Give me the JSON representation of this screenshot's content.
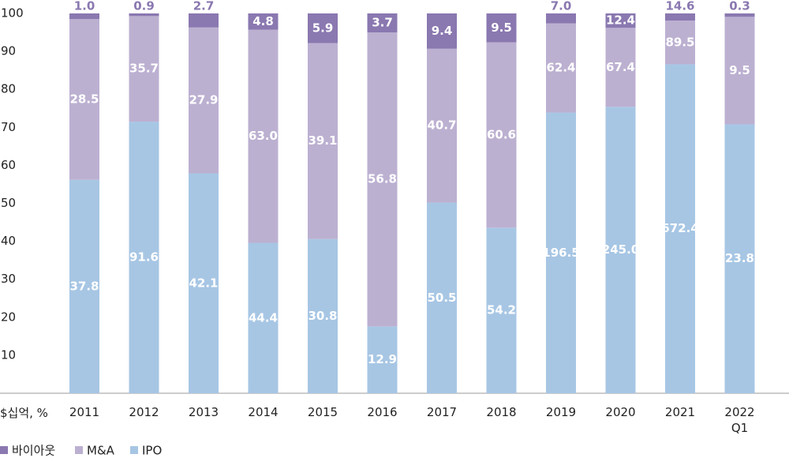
{
  "chart_data": {
    "type": "bar",
    "stacked": true,
    "axis_label": "$십억, %",
    "categories": [
      "2011",
      "2012",
      "2013",
      "2014",
      "2015",
      "2016",
      "2017",
      "2018",
      "2019",
      "2020",
      "2021",
      "2022 Q1"
    ],
    "series": [
      {
        "name": "바이아웃",
        "color": "#8a78b0",
        "values": [
          1.5,
          0.7,
          3.7,
          4.3,
          7.8,
          5.0,
          9.3,
          7.6,
          2.6,
          3.8,
          1.9,
          0.9
        ],
        "amounts": [
          1.0,
          0.9,
          2.7,
          4.8,
          5.9,
          3.7,
          9.4,
          9.5,
          7.0,
          12.4,
          14.6,
          0.3
        ],
        "amount_labels": [
          "1.0",
          "0.9",
          "2.7",
          "4.8",
          "5.9",
          "3.7",
          "9.4",
          "9.5",
          "7.0",
          "12.4",
          "14.6",
          "0.3"
        ]
      },
      {
        "name": "M&A",
        "color": "#bcb0d1",
        "values": [
          42.3,
          27.8,
          38.4,
          56.1,
          51.6,
          77.4,
          40.5,
          48.8,
          23.5,
          20.8,
          11.5,
          28.3
        ],
        "amounts": [
          28.5,
          35.7,
          27.9,
          63.0,
          39.1,
          56.8,
          40.7,
          60.6,
          62.4,
          67.4,
          89.5,
          9.5
        ],
        "amount_labels": [
          "28.5",
          "35.7",
          "27.9",
          "63.0",
          "39.1",
          "56.8",
          "40.7",
          "60.6",
          "62.4",
          "67.4",
          "89.5",
          "9.5"
        ]
      },
      {
        "name": "IPO",
        "color": "#a7c6e4",
        "values": [
          56.2,
          71.5,
          57.9,
          39.6,
          40.6,
          17.6,
          50.2,
          43.6,
          73.9,
          75.4,
          86.6,
          70.8
        ],
        "amounts": [
          37.8,
          91.6,
          42.1,
          44.4,
          30.8,
          12.9,
          50.5,
          54.2,
          196.5,
          245.0,
          672.4,
          23.8
        ],
        "amount_labels": [
          "37.8",
          "91.6",
          "42.1",
          "44.4",
          "30.8",
          "12.9",
          "50.5",
          "54.2",
          "196.5",
          "245.0",
          "672.4",
          "23.8"
        ]
      }
    ],
    "ylim": [
      0,
      100
    ],
    "yticks": [
      10,
      20,
      30,
      40,
      50,
      60,
      70,
      80,
      90,
      100
    ],
    "grid": false
  }
}
